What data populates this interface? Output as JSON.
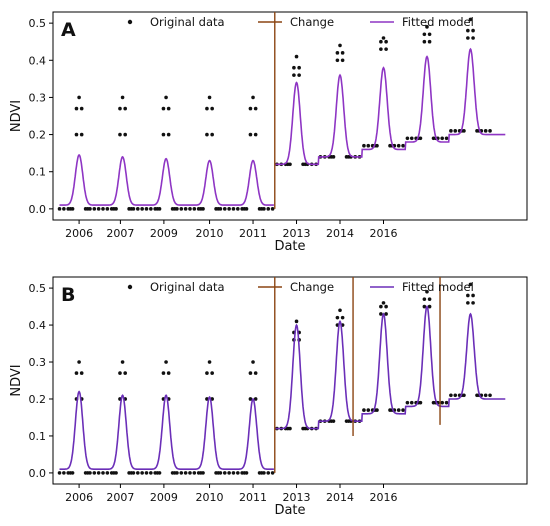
{
  "chart_data": [
    {
      "type": "scatter",
      "panel_label": "A",
      "xlabel": "Date",
      "ylabel": "NDVI",
      "xlim": [
        2005.4,
        2016.3
      ],
      "ylim": [
        -0.03,
        0.53
      ],
      "grid": false,
      "legend_position": "top",
      "x_ticks": [
        {
          "x": 2006.0,
          "label": "2006"
        },
        {
          "x": 2006.95,
          "label": "2007"
        },
        {
          "x": 2007.95,
          "label": "2009"
        },
        {
          "x": 2009.0,
          "label": "2010"
        },
        {
          "x": 2010.0,
          "label": "2011"
        },
        {
          "x": 2011.0,
          "label": "2013"
        },
        {
          "x": 2012.0,
          "label": "2014"
        },
        {
          "x": 2013.0,
          "label": "2016"
        }
      ],
      "y_ticks": [
        {
          "y": 0.0,
          "label": "0.0"
        },
        {
          "y": 0.1,
          "label": "0.1"
        },
        {
          "y": 0.2,
          "label": "0.2"
        },
        {
          "y": 0.3,
          "label": "0.3"
        },
        {
          "y": 0.4,
          "label": "0.4"
        },
        {
          "y": 0.5,
          "label": "0.5"
        }
      ],
      "legend": [
        "Original data",
        "Change",
        "Fitted model"
      ],
      "series": [
        {
          "name": "Original data",
          "kind": "points",
          "color": "#111111",
          "cycles": [
            {
              "peak_x": 2006.0,
              "baseline": 0.0,
              "peaks": [
                0.2,
                0.27,
                0.3
              ]
            },
            {
              "peak_x": 2007.0,
              "baseline": 0.0,
              "peaks": [
                0.2,
                0.27,
                0.3
              ]
            },
            {
              "peak_x": 2008.0,
              "baseline": 0.0,
              "peaks": [
                0.2,
                0.27,
                0.3
              ]
            },
            {
              "peak_x": 2009.0,
              "baseline": 0.0,
              "peaks": [
                0.2,
                0.27,
                0.3
              ]
            },
            {
              "peak_x": 2010.0,
              "baseline": 0.0,
              "peaks": [
                0.2,
                0.27,
                0.3
              ]
            },
            {
              "peak_x": 2011.0,
              "baseline": 0.12,
              "peaks": [
                0.36,
                0.38,
                0.41
              ]
            },
            {
              "peak_x": 2012.0,
              "baseline": 0.14,
              "peaks": [
                0.4,
                0.42,
                0.44
              ]
            },
            {
              "peak_x": 2013.0,
              "baseline": 0.17,
              "peaks": [
                0.43,
                0.45,
                0.46
              ]
            },
            {
              "peak_x": 2014.0,
              "baseline": 0.19,
              "peaks": [
                0.45,
                0.47,
                0.49
              ]
            },
            {
              "peak_x": 2015.0,
              "baseline": 0.21,
              "peaks": [
                0.46,
                0.48,
                0.51
              ]
            }
          ]
        },
        {
          "name": "Fitted model",
          "kind": "line",
          "color": "#8e35c4",
          "cycles": [
            {
              "peak_x": 2006.0,
              "baseline": 0.01,
              "peak": 0.145
            },
            {
              "peak_x": 2007.0,
              "baseline": 0.01,
              "peak": 0.14
            },
            {
              "peak_x": 2008.0,
              "baseline": 0.01,
              "peak": 0.135
            },
            {
              "peak_x": 2009.0,
              "baseline": 0.01,
              "peak": 0.13
            },
            {
              "peak_x": 2010.0,
              "baseline": 0.01,
              "peak": 0.13
            },
            {
              "peak_x": 2011.0,
              "baseline": 0.12,
              "peak": 0.34
            },
            {
              "peak_x": 2012.0,
              "baseline": 0.14,
              "peak": 0.36
            },
            {
              "peak_x": 2013.0,
              "baseline": 0.16,
              "peak": 0.38
            },
            {
              "peak_x": 2014.0,
              "baseline": 0.18,
              "peak": 0.41
            },
            {
              "peak_x": 2015.0,
              "baseline": 0.2,
              "peak": 0.43
            }
          ]
        },
        {
          "name": "Change",
          "kind": "vlines",
          "color": "#8b4513",
          "lines": [
            {
              "x": 2010.5,
              "y0": 0.0,
              "y1": 0.53
            }
          ]
        }
      ]
    },
    {
      "type": "scatter",
      "panel_label": "B",
      "xlabel": "Date",
      "ylabel": "NDVI",
      "xlim": [
        2005.4,
        2016.3
      ],
      "ylim": [
        -0.03,
        0.53
      ],
      "grid": false,
      "legend_position": "top",
      "x_ticks": [
        {
          "x": 2006.0,
          "label": "2006"
        },
        {
          "x": 2006.95,
          "label": "2007"
        },
        {
          "x": 2007.95,
          "label": "2009"
        },
        {
          "x": 2009.0,
          "label": "2010"
        },
        {
          "x": 2010.0,
          "label": "2011"
        },
        {
          "x": 2011.0,
          "label": "2013"
        },
        {
          "x": 2012.0,
          "label": "2014"
        },
        {
          "x": 2013.0,
          "label": "2016"
        }
      ],
      "y_ticks": [
        {
          "y": 0.0,
          "label": "0.0"
        },
        {
          "y": 0.1,
          "label": "0.1"
        },
        {
          "y": 0.2,
          "label": "0.2"
        },
        {
          "y": 0.3,
          "label": "0.3"
        },
        {
          "y": 0.4,
          "label": "0.4"
        },
        {
          "y": 0.5,
          "label": "0.5"
        }
      ],
      "legend": [
        "Original data",
        "Change",
        "Fitted model"
      ],
      "series": [
        {
          "name": "Original data",
          "kind": "points",
          "color": "#111111",
          "cycles": [
            {
              "peak_x": 2006.0,
              "baseline": 0.0,
              "peaks": [
                0.2,
                0.27,
                0.3
              ]
            },
            {
              "peak_x": 2007.0,
              "baseline": 0.0,
              "peaks": [
                0.2,
                0.27,
                0.3
              ]
            },
            {
              "peak_x": 2008.0,
              "baseline": 0.0,
              "peaks": [
                0.2,
                0.27,
                0.3
              ]
            },
            {
              "peak_x": 2009.0,
              "baseline": 0.0,
              "peaks": [
                0.2,
                0.27,
                0.3
              ]
            },
            {
              "peak_x": 2010.0,
              "baseline": 0.0,
              "peaks": [
                0.2,
                0.27,
                0.3
              ]
            },
            {
              "peak_x": 2011.0,
              "baseline": 0.12,
              "peaks": [
                0.36,
                0.38,
                0.41
              ]
            },
            {
              "peak_x": 2012.0,
              "baseline": 0.14,
              "peaks": [
                0.4,
                0.42,
                0.44
              ]
            },
            {
              "peak_x": 2013.0,
              "baseline": 0.17,
              "peaks": [
                0.43,
                0.45,
                0.46
              ]
            },
            {
              "peak_x": 2014.0,
              "baseline": 0.19,
              "peaks": [
                0.45,
                0.47,
                0.49
              ]
            },
            {
              "peak_x": 2015.0,
              "baseline": 0.21,
              "peaks": [
                0.46,
                0.48,
                0.51
              ]
            }
          ]
        },
        {
          "name": "Fitted model",
          "kind": "line",
          "color": "#6b2fb8",
          "cycles": [
            {
              "peak_x": 2006.0,
              "baseline": 0.01,
              "peak": 0.22
            },
            {
              "peak_x": 2007.0,
              "baseline": 0.01,
              "peak": 0.21
            },
            {
              "peak_x": 2008.0,
              "baseline": 0.01,
              "peak": 0.21
            },
            {
              "peak_x": 2009.0,
              "baseline": 0.01,
              "peak": 0.205
            },
            {
              "peak_x": 2010.0,
              "baseline": 0.01,
              "peak": 0.2
            },
            {
              "peak_x": 2011.0,
              "baseline": 0.12,
              "peak": 0.4
            },
            {
              "peak_x": 2012.0,
              "baseline": 0.14,
              "peak": 0.41
            },
            {
              "peak_x": 2013.0,
              "baseline": 0.16,
              "peak": 0.43
            },
            {
              "peak_x": 2014.0,
              "baseline": 0.18,
              "peak": 0.45
            },
            {
              "peak_x": 2015.0,
              "baseline": 0.2,
              "peak": 0.43
            }
          ]
        },
        {
          "name": "Change",
          "kind": "vlines",
          "color": "#8b4513",
          "lines": [
            {
              "x": 2010.5,
              "y0": 0.0,
              "y1": 0.53
            },
            {
              "x": 2012.3,
              "y0": 0.1,
              "y1": 0.53
            },
            {
              "x": 2014.3,
              "y0": 0.13,
              "y1": 0.53
            }
          ]
        }
      ]
    }
  ]
}
